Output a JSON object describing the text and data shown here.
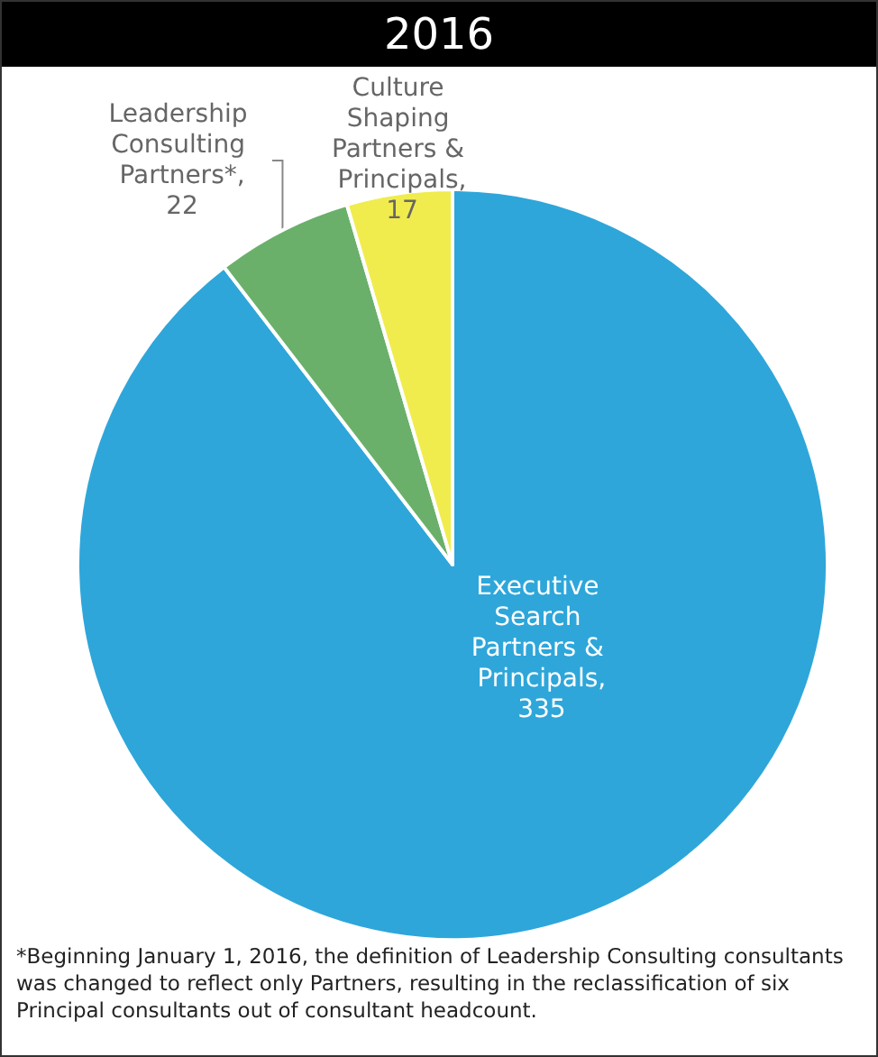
{
  "chart_data": {
    "type": "pie",
    "title": "2016",
    "categories": [
      "Executive Search Partners & Principals",
      "Leadership Consulting Partners*",
      "Culture Shaping Partners & Principals"
    ],
    "values": [
      335,
      22,
      17
    ],
    "value_labels": [
      ", 335",
      ", 22",
      ", 17"
    ],
    "colors": [
      "#2ea6da",
      "#6ab06a",
      "#f0ec4e"
    ],
    "data_labels": true,
    "legend": false,
    "annotations": [
      "*Beginning January 1, 2016,  the definition of Leadership Consulting consultants was changed to reflect only Partners, resulting in the reclassification of six Principal consultants out of consultant headcount."
    ]
  }
}
